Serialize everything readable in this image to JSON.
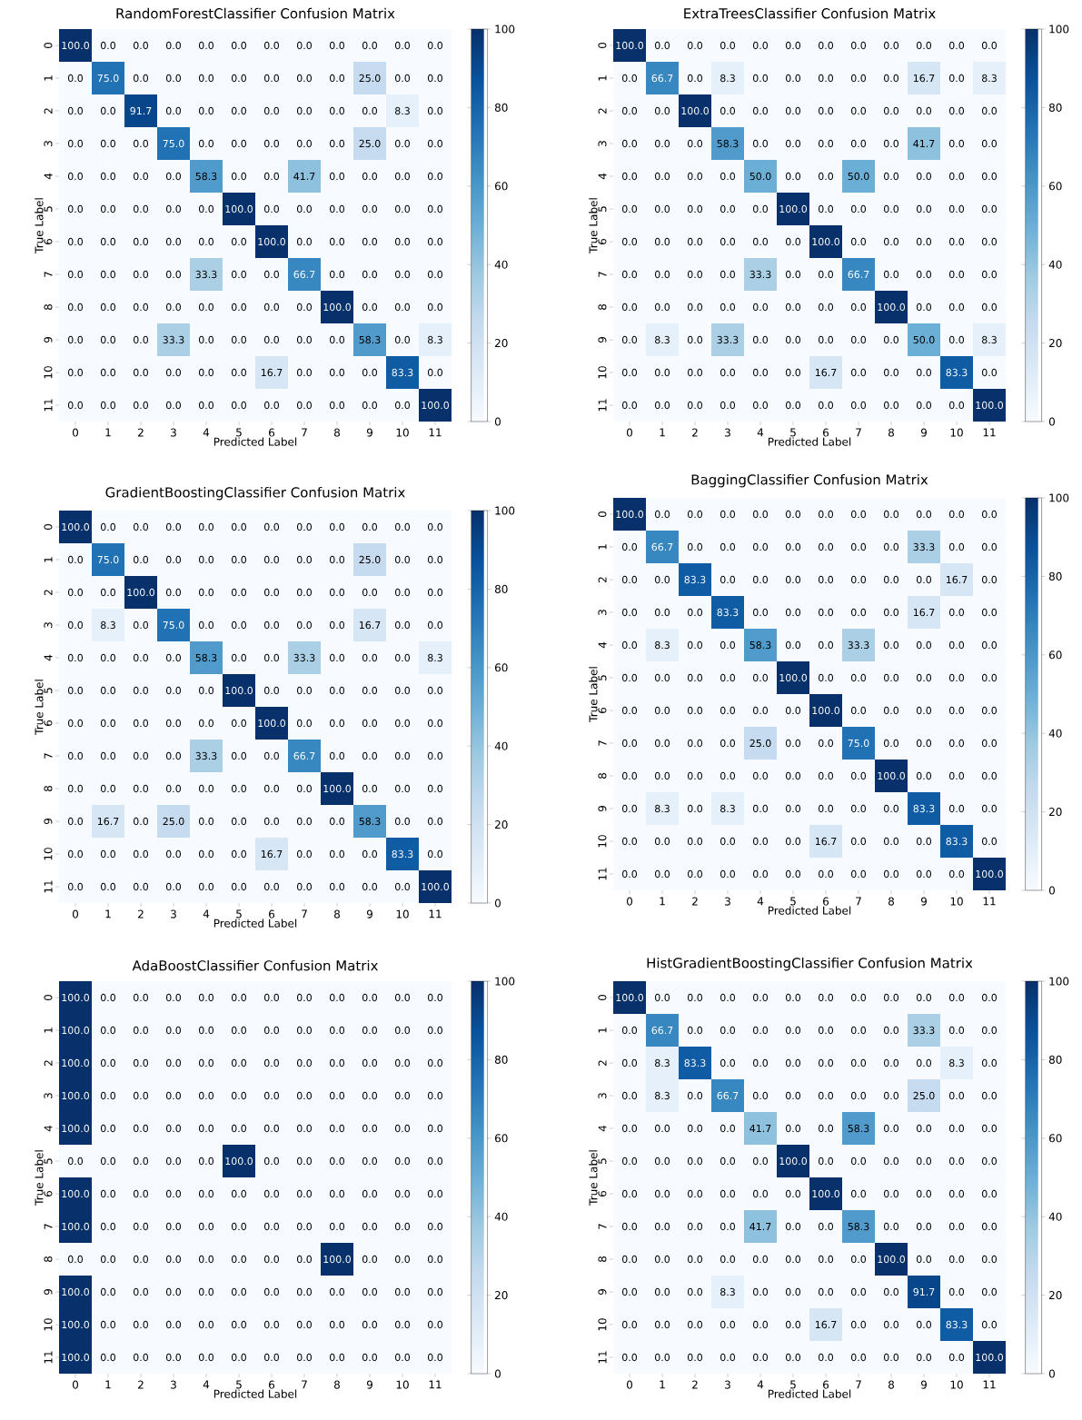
{
  "chart_data": [
    {
      "type": "heatmap",
      "title": "RandomForestClassifier Confusion Matrix",
      "data_labels": true,
      "xlabel": "Predicted Label",
      "ylabel": "True Label",
      "categories": [
        "0",
        "1",
        "2",
        "3",
        "4",
        "5",
        "6",
        "7",
        "8",
        "9",
        "10",
        "11"
      ],
      "y_categories": [
        "0",
        "1",
        "2",
        "3",
        "4",
        "5",
        "6",
        "7",
        "8",
        "9",
        "10",
        "11"
      ],
      "cells": [
        [
          100,
          0,
          0,
          0,
          0,
          0,
          0,
          0,
          0,
          0,
          0,
          0
        ],
        [
          0,
          75,
          0,
          0,
          0,
          0,
          0,
          0,
          0,
          25,
          0,
          0
        ],
        [
          0,
          0,
          91.7,
          0,
          0,
          0,
          0,
          0,
          0,
          0,
          8.3,
          0
        ],
        [
          0,
          0,
          0,
          75,
          0,
          0,
          0,
          0,
          0,
          25,
          0,
          0
        ],
        [
          0,
          0,
          0,
          0,
          58.3,
          0,
          0,
          41.7,
          0,
          0,
          0,
          0
        ],
        [
          0,
          0,
          0,
          0,
          0,
          100,
          0,
          0,
          0,
          0,
          0,
          0
        ],
        [
          0,
          0,
          0,
          0,
          0,
          0,
          100,
          0,
          0,
          0,
          0,
          0
        ],
        [
          0,
          0,
          0,
          0,
          33.3,
          0,
          0,
          66.7,
          0,
          0,
          0,
          0
        ],
        [
          0,
          0,
          0,
          0,
          0,
          0,
          0,
          0,
          100,
          0,
          0,
          0
        ],
        [
          0,
          0,
          0,
          33.3,
          0,
          0,
          0,
          0,
          0,
          58.3,
          0,
          8.3
        ],
        [
          0,
          0,
          0,
          0,
          0,
          0,
          16.7,
          0,
          0,
          0,
          83.3,
          0
        ],
        [
          0,
          0,
          0,
          0,
          0,
          0,
          0,
          0,
          0,
          0,
          0,
          100
        ]
      ],
      "cell_labels": [
        [
          "100.0",
          "0.0",
          "0.0",
          "0.0",
          "0.0",
          "0.0",
          "0.0",
          "0.0",
          "0.0",
          "0.0",
          "0.0",
          "0.0"
        ],
        [
          "0.0",
          "75.0",
          "0.0",
          "0.0",
          "0.0",
          "0.0",
          "0.0",
          "0.0",
          "0.0",
          "25.0",
          "0.0",
          "0.0"
        ],
        [
          "0.0",
          "0.0",
          "91.7",
          "0.0",
          "0.0",
          "0.0",
          "0.0",
          "0.0",
          "0.0",
          "0.0",
          "8.3",
          "0.0"
        ],
        [
          "0.0",
          "0.0",
          "0.0",
          "75.0",
          "0.0",
          "0.0",
          "0.0",
          "0.0",
          "0.0",
          "25.0",
          "0.0",
          "0.0"
        ],
        [
          "0.0",
          "0.0",
          "0.0",
          "0.0",
          "58.3",
          "0.0",
          "0.0",
          "41.7",
          "0.0",
          "0.0",
          "0.0",
          "0.0"
        ],
        [
          "0.0",
          "0.0",
          "0.0",
          "0.0",
          "0.0",
          "100.0",
          "0.0",
          "0.0",
          "0.0",
          "0.0",
          "0.0",
          "0.0"
        ],
        [
          "0.0",
          "0.0",
          "0.0",
          "0.0",
          "0.0",
          "0.0",
          "100.0",
          "0.0",
          "0.0",
          "0.0",
          "0.0",
          "0.0"
        ],
        [
          "0.0",
          "0.0",
          "0.0",
          "0.0",
          "33.3",
          "0.0",
          "0.0",
          "66.7",
          "0.0",
          "0.0",
          "0.0",
          "0.0"
        ],
        [
          "0.0",
          "0.0",
          "0.0",
          "0.0",
          "0.0",
          "0.0",
          "0.0",
          "0.0",
          "100.0",
          "0.0",
          "0.0",
          "0.0"
        ],
        [
          "0.0",
          "0.0",
          "0.0",
          "33.3",
          "0.0",
          "0.0",
          "0.0",
          "0.0",
          "0.0",
          "58.3",
          "0.0",
          "8.3"
        ],
        [
          "0.0",
          "0.0",
          "0.0",
          "0.0",
          "0.0",
          "0.0",
          "16.7",
          "0.0",
          "0.0",
          "0.0",
          "83.3",
          "0.0"
        ],
        [
          "0.0",
          "0.0",
          "0.0",
          "0.0",
          "0.0",
          "0.0",
          "0.0",
          "0.0",
          "0.0",
          "0.0",
          "0.0",
          "100.0"
        ]
      ],
      "clim": [
        0,
        100
      ],
      "cticks": [
        0,
        20,
        40,
        60,
        80,
        100
      ]
    },
    {
      "type": "heatmap",
      "title": "ExtraTreesClassifier Confusion Matrix",
      "data_labels": true,
      "xlabel": "Predicted Label",
      "ylabel": "True Label",
      "categories": [
        "0",
        "1",
        "2",
        "3",
        "4",
        "5",
        "6",
        "7",
        "8",
        "9",
        "10",
        "11"
      ],
      "y_categories": [
        "0",
        "1",
        "2",
        "3",
        "4",
        "5",
        "6",
        "7",
        "8",
        "9",
        "10",
        "11"
      ],
      "cells": [
        [
          100,
          0,
          0,
          0,
          0,
          0,
          0,
          0,
          0,
          0,
          0,
          0
        ],
        [
          0,
          66.7,
          0,
          8.3,
          0,
          0,
          0,
          0,
          0,
          16.7,
          0,
          8.3
        ],
        [
          0,
          0,
          100,
          0,
          0,
          0,
          0,
          0,
          0,
          0,
          0,
          0
        ],
        [
          0,
          0,
          0,
          58.3,
          0,
          0,
          0,
          0,
          0,
          41.7,
          0,
          0
        ],
        [
          0,
          0,
          0,
          0,
          50,
          0,
          0,
          50,
          0,
          0,
          0,
          0
        ],
        [
          0,
          0,
          0,
          0,
          0,
          100,
          0,
          0,
          0,
          0,
          0,
          0
        ],
        [
          0,
          0,
          0,
          0,
          0,
          0,
          100,
          0,
          0,
          0,
          0,
          0
        ],
        [
          0,
          0,
          0,
          0,
          33.3,
          0,
          0,
          66.7,
          0,
          0,
          0,
          0
        ],
        [
          0,
          0,
          0,
          0,
          0,
          0,
          0,
          0,
          100,
          0,
          0,
          0
        ],
        [
          0,
          8.3,
          0,
          33.3,
          0,
          0,
          0,
          0,
          0,
          50,
          0,
          8.3
        ],
        [
          0,
          0,
          0,
          0,
          0,
          0,
          16.7,
          0,
          0,
          0,
          83.3,
          0
        ],
        [
          0,
          0,
          0,
          0,
          0,
          0,
          0,
          0,
          0,
          0,
          0,
          100
        ]
      ],
      "cell_labels": [
        [
          "100.0",
          "0.0",
          "0.0",
          "0.0",
          "0.0",
          "0.0",
          "0.0",
          "0.0",
          "0.0",
          "0.0",
          "0.0",
          "0.0"
        ],
        [
          "0.0",
          "66.7",
          "0.0",
          "8.3",
          "0.0",
          "0.0",
          "0.0",
          "0.0",
          "0.0",
          "16.7",
          "0.0",
          "8.3"
        ],
        [
          "0.0",
          "0.0",
          "100.0",
          "0.0",
          "0.0",
          "0.0",
          "0.0",
          "0.0",
          "0.0",
          "0.0",
          "0.0",
          "0.0"
        ],
        [
          "0.0",
          "0.0",
          "0.0",
          "58.3",
          "0.0",
          "0.0",
          "0.0",
          "0.0",
          "0.0",
          "41.7",
          "0.0",
          "0.0"
        ],
        [
          "0.0",
          "0.0",
          "0.0",
          "0.0",
          "50.0",
          "0.0",
          "0.0",
          "50.0",
          "0.0",
          "0.0",
          "0.0",
          "0.0"
        ],
        [
          "0.0",
          "0.0",
          "0.0",
          "0.0",
          "0.0",
          "100.0",
          "0.0",
          "0.0",
          "0.0",
          "0.0",
          "0.0",
          "0.0"
        ],
        [
          "0.0",
          "0.0",
          "0.0",
          "0.0",
          "0.0",
          "0.0",
          "100.0",
          "0.0",
          "0.0",
          "0.0",
          "0.0",
          "0.0"
        ],
        [
          "0.0",
          "0.0",
          "0.0",
          "0.0",
          "33.3",
          "0.0",
          "0.0",
          "66.7",
          "0.0",
          "0.0",
          "0.0",
          "0.0"
        ],
        [
          "0.0",
          "0.0",
          "0.0",
          "0.0",
          "0.0",
          "0.0",
          "0.0",
          "0.0",
          "100.0",
          "0.0",
          "0.0",
          "0.0"
        ],
        [
          "0.0",
          "8.3",
          "0.0",
          "33.3",
          "0.0",
          "0.0",
          "0.0",
          "0.0",
          "0.0",
          "50.0",
          "0.0",
          "8.3"
        ],
        [
          "0.0",
          "0.0",
          "0.0",
          "0.0",
          "0.0",
          "0.0",
          "16.7",
          "0.0",
          "0.0",
          "0.0",
          "83.3",
          "0.0"
        ],
        [
          "0.0",
          "0.0",
          "0.0",
          "0.0",
          "0.0",
          "0.0",
          "0.0",
          "0.0",
          "0.0",
          "0.0",
          "0.0",
          "100.0"
        ]
      ],
      "clim": [
        0,
        100
      ],
      "cticks": [
        0,
        20,
        40,
        60,
        80,
        100
      ]
    },
    {
      "type": "heatmap",
      "title": "GradientBoostingClassifier Confusion Matrix",
      "data_labels": true,
      "xlabel": "Predicted Label",
      "ylabel": "True Label",
      "categories": [
        "0",
        "1",
        "2",
        "3",
        "4",
        "5",
        "6",
        "7",
        "8",
        "9",
        "10",
        "11"
      ],
      "y_categories": [
        "0",
        "1",
        "2",
        "3",
        "4",
        "5",
        "6",
        "7",
        "8",
        "9",
        "10",
        "11"
      ],
      "cells": [
        [
          100,
          0,
          0,
          0,
          0,
          0,
          0,
          0,
          0,
          0,
          0,
          0
        ],
        [
          0,
          75,
          0,
          0,
          0,
          0,
          0,
          0,
          0,
          25,
          0,
          0
        ],
        [
          0,
          0,
          100,
          0,
          0,
          0,
          0,
          0,
          0,
          0,
          0,
          0
        ],
        [
          0,
          8.3,
          0,
          75,
          0,
          0,
          0,
          0,
          0,
          16.7,
          0,
          0
        ],
        [
          0,
          0,
          0,
          0,
          58.3,
          0,
          0,
          33.3,
          0,
          0,
          0,
          8.3
        ],
        [
          0,
          0,
          0,
          0,
          0,
          100,
          0,
          0,
          0,
          0,
          0,
          0
        ],
        [
          0,
          0,
          0,
          0,
          0,
          0,
          100,
          0,
          0,
          0,
          0,
          0
        ],
        [
          0,
          0,
          0,
          0,
          33.3,
          0,
          0,
          66.7,
          0,
          0,
          0,
          0
        ],
        [
          0,
          0,
          0,
          0,
          0,
          0,
          0,
          0,
          100,
          0,
          0,
          0
        ],
        [
          0,
          16.7,
          0,
          25,
          0,
          0,
          0,
          0,
          0,
          58.3,
          0,
          0
        ],
        [
          0,
          0,
          0,
          0,
          0,
          0,
          16.7,
          0,
          0,
          0,
          83.3,
          0
        ],
        [
          0,
          0,
          0,
          0,
          0,
          0,
          0,
          0,
          0,
          0,
          0,
          100
        ]
      ],
      "cell_labels": [
        [
          "100.0",
          "0.0",
          "0.0",
          "0.0",
          "0.0",
          "0.0",
          "0.0",
          "0.0",
          "0.0",
          "0.0",
          "0.0",
          "0.0"
        ],
        [
          "0.0",
          "75.0",
          "0.0",
          "0.0",
          "0.0",
          "0.0",
          "0.0",
          "0.0",
          "0.0",
          "25.0",
          "0.0",
          "0.0"
        ],
        [
          "0.0",
          "0.0",
          "100.0",
          "0.0",
          "0.0",
          "0.0",
          "0.0",
          "0.0",
          "0.0",
          "0.0",
          "0.0",
          "0.0"
        ],
        [
          "0.0",
          "8.3",
          "0.0",
          "75.0",
          "0.0",
          "0.0",
          "0.0",
          "0.0",
          "0.0",
          "16.7",
          "0.0",
          "0.0"
        ],
        [
          "0.0",
          "0.0",
          "0.0",
          "0.0",
          "58.3",
          "0.0",
          "0.0",
          "33.3",
          "0.0",
          "0.0",
          "0.0",
          "8.3"
        ],
        [
          "0.0",
          "0.0",
          "0.0",
          "0.0",
          "0.0",
          "100.0",
          "0.0",
          "0.0",
          "0.0",
          "0.0",
          "0.0",
          "0.0"
        ],
        [
          "0.0",
          "0.0",
          "0.0",
          "0.0",
          "0.0",
          "0.0",
          "100.0",
          "0.0",
          "0.0",
          "0.0",
          "0.0",
          "0.0"
        ],
        [
          "0.0",
          "0.0",
          "0.0",
          "0.0",
          "33.3",
          "0.0",
          "0.0",
          "66.7",
          "0.0",
          "0.0",
          "0.0",
          "0.0"
        ],
        [
          "0.0",
          "0.0",
          "0.0",
          "0.0",
          "0.0",
          "0.0",
          "0.0",
          "0.0",
          "100.0",
          "0.0",
          "0.0",
          "0.0"
        ],
        [
          "0.0",
          "16.7",
          "0.0",
          "25.0",
          "0.0",
          "0.0",
          "0.0",
          "0.0",
          "0.0",
          "58.3",
          "0.0",
          "0.0"
        ],
        [
          "0.0",
          "0.0",
          "0.0",
          "0.0",
          "0.0",
          "0.0",
          "16.7",
          "0.0",
          "0.0",
          "0.0",
          "83.3",
          "0.0"
        ],
        [
          "0.0",
          "0.0",
          "0.0",
          "0.0",
          "0.0",
          "0.0",
          "0.0",
          "0.0",
          "0.0",
          "0.0",
          "0.0",
          "100.0"
        ]
      ],
      "clim": [
        0,
        100
      ],
      "cticks": [
        0,
        20,
        40,
        60,
        80,
        100
      ]
    },
    {
      "type": "heatmap",
      "title": "BaggingClassifier Confusion Matrix",
      "data_labels": true,
      "xlabel": "Predicted Label",
      "ylabel": "True Label",
      "categories": [
        "0",
        "1",
        "2",
        "3",
        "4",
        "5",
        "6",
        "7",
        "8",
        "9",
        "10",
        "11"
      ],
      "y_categories": [
        "0",
        "1",
        "2",
        "3",
        "4",
        "5",
        "6",
        "7",
        "8",
        "9",
        "10",
        "11"
      ],
      "cells": [
        [
          100,
          0,
          0,
          0,
          0,
          0,
          0,
          0,
          0,
          0,
          0,
          0
        ],
        [
          0,
          66.7,
          0,
          0,
          0,
          0,
          0,
          0,
          0,
          33.3,
          0,
          0
        ],
        [
          0,
          0,
          83.3,
          0,
          0,
          0,
          0,
          0,
          0,
          0,
          16.7,
          0
        ],
        [
          0,
          0,
          0,
          83.3,
          0,
          0,
          0,
          0,
          0,
          16.7,
          0,
          0
        ],
        [
          0,
          8.3,
          0,
          0,
          58.3,
          0,
          0,
          33.3,
          0,
          0,
          0,
          0
        ],
        [
          0,
          0,
          0,
          0,
          0,
          100,
          0,
          0,
          0,
          0,
          0,
          0
        ],
        [
          0,
          0,
          0,
          0,
          0,
          0,
          100,
          0,
          0,
          0,
          0,
          0
        ],
        [
          0,
          0,
          0,
          0,
          25,
          0,
          0,
          75,
          0,
          0,
          0,
          0
        ],
        [
          0,
          0,
          0,
          0,
          0,
          0,
          0,
          0,
          100,
          0,
          0,
          0
        ],
        [
          0,
          8.3,
          0,
          8.3,
          0,
          0,
          0,
          0,
          0,
          83.3,
          0,
          0
        ],
        [
          0,
          0,
          0,
          0,
          0,
          0,
          16.7,
          0,
          0,
          0,
          83.3,
          0
        ],
        [
          0,
          0,
          0,
          0,
          0,
          0,
          0,
          0,
          0,
          0,
          0,
          100
        ]
      ],
      "cell_labels": [
        [
          "100.0",
          "0.0",
          "0.0",
          "0.0",
          "0.0",
          "0.0",
          "0.0",
          "0.0",
          "0.0",
          "0.0",
          "0.0",
          "0.0"
        ],
        [
          "0.0",
          "66.7",
          "0.0",
          "0.0",
          "0.0",
          "0.0",
          "0.0",
          "0.0",
          "0.0",
          "33.3",
          "0.0",
          "0.0"
        ],
        [
          "0.0",
          "0.0",
          "83.3",
          "0.0",
          "0.0",
          "0.0",
          "0.0",
          "0.0",
          "0.0",
          "0.0",
          "16.7",
          "0.0"
        ],
        [
          "0.0",
          "0.0",
          "0.0",
          "83.3",
          "0.0",
          "0.0",
          "0.0",
          "0.0",
          "0.0",
          "16.7",
          "0.0",
          "0.0"
        ],
        [
          "0.0",
          "8.3",
          "0.0",
          "0.0",
          "58.3",
          "0.0",
          "0.0",
          "33.3",
          "0.0",
          "0.0",
          "0.0",
          "0.0"
        ],
        [
          "0.0",
          "0.0",
          "0.0",
          "0.0",
          "0.0",
          "100.0",
          "0.0",
          "0.0",
          "0.0",
          "0.0",
          "0.0",
          "0.0"
        ],
        [
          "0.0",
          "0.0",
          "0.0",
          "0.0",
          "0.0",
          "0.0",
          "100.0",
          "0.0",
          "0.0",
          "0.0",
          "0.0",
          "0.0"
        ],
        [
          "0.0",
          "0.0",
          "0.0",
          "0.0",
          "25.0",
          "0.0",
          "0.0",
          "75.0",
          "0.0",
          "0.0",
          "0.0",
          "0.0"
        ],
        [
          "0.0",
          "0.0",
          "0.0",
          "0.0",
          "0.0",
          "0.0",
          "0.0",
          "0.0",
          "100.0",
          "0.0",
          "0.0",
          "0.0"
        ],
        [
          "0.0",
          "8.3",
          "0.0",
          "8.3",
          "0.0",
          "0.0",
          "0.0",
          "0.0",
          "0.0",
          "83.3",
          "0.0",
          "0.0"
        ],
        [
          "0.0",
          "0.0",
          "0.0",
          "0.0",
          "0.0",
          "0.0",
          "16.7",
          "0.0",
          "0.0",
          "0.0",
          "83.3",
          "0.0"
        ],
        [
          "0.0",
          "0.0",
          "0.0",
          "0.0",
          "0.0",
          "0.0",
          "0.0",
          "0.0",
          "0.0",
          "0.0",
          "0.0",
          "100.0"
        ]
      ],
      "clim": [
        0,
        100
      ],
      "cticks": [
        0,
        20,
        40,
        60,
        80,
        100
      ]
    },
    {
      "type": "heatmap",
      "title": "AdaBoostClassifier Confusion Matrix",
      "data_labels": true,
      "xlabel": "Predicted Label",
      "ylabel": "True Label",
      "categories": [
        "0",
        "1",
        "2",
        "3",
        "4",
        "5",
        "6",
        "7",
        "8",
        "9",
        "10",
        "11"
      ],
      "y_categories": [
        "0",
        "1",
        "2",
        "3",
        "4",
        "5",
        "6",
        "7",
        "8",
        "9",
        "10",
        "11"
      ],
      "cells": [
        [
          100,
          0,
          0,
          0,
          0,
          0,
          0,
          0,
          0,
          0,
          0,
          0
        ],
        [
          100,
          0,
          0,
          0,
          0,
          0,
          0,
          0,
          0,
          0,
          0,
          0
        ],
        [
          100,
          0,
          0,
          0,
          0,
          0,
          0,
          0,
          0,
          0,
          0,
          0
        ],
        [
          100,
          0,
          0,
          0,
          0,
          0,
          0,
          0,
          0,
          0,
          0,
          0
        ],
        [
          100,
          0,
          0,
          0,
          0,
          0,
          0,
          0,
          0,
          0,
          0,
          0
        ],
        [
          0,
          0,
          0,
          0,
          0,
          100,
          0,
          0,
          0,
          0,
          0,
          0
        ],
        [
          100,
          0,
          0,
          0,
          0,
          0,
          0,
          0,
          0,
          0,
          0,
          0
        ],
        [
          100,
          0,
          0,
          0,
          0,
          0,
          0,
          0,
          0,
          0,
          0,
          0
        ],
        [
          0,
          0,
          0,
          0,
          0,
          0,
          0,
          0,
          100,
          0,
          0,
          0
        ],
        [
          100,
          0,
          0,
          0,
          0,
          0,
          0,
          0,
          0,
          0,
          0,
          0
        ],
        [
          100,
          0,
          0,
          0,
          0,
          0,
          0,
          0,
          0,
          0,
          0,
          0
        ],
        [
          100,
          0,
          0,
          0,
          0,
          0,
          0,
          0,
          0,
          0,
          0,
          0
        ]
      ],
      "cell_labels": [
        [
          "100.0",
          "0.0",
          "0.0",
          "0.0",
          "0.0",
          "0.0",
          "0.0",
          "0.0",
          "0.0",
          "0.0",
          "0.0",
          "0.0"
        ],
        [
          "100.0",
          "0.0",
          "0.0",
          "0.0",
          "0.0",
          "0.0",
          "0.0",
          "0.0",
          "0.0",
          "0.0",
          "0.0",
          "0.0"
        ],
        [
          "100.0",
          "0.0",
          "0.0",
          "0.0",
          "0.0",
          "0.0",
          "0.0",
          "0.0",
          "0.0",
          "0.0",
          "0.0",
          "0.0"
        ],
        [
          "100.0",
          "0.0",
          "0.0",
          "0.0",
          "0.0",
          "0.0",
          "0.0",
          "0.0",
          "0.0",
          "0.0",
          "0.0",
          "0.0"
        ],
        [
          "100.0",
          "0.0",
          "0.0",
          "0.0",
          "0.0",
          "0.0",
          "0.0",
          "0.0",
          "0.0",
          "0.0",
          "0.0",
          "0.0"
        ],
        [
          "0.0",
          "0.0",
          "0.0",
          "0.0",
          "0.0",
          "100.0",
          "0.0",
          "0.0",
          "0.0",
          "0.0",
          "0.0",
          "0.0"
        ],
        [
          "100.0",
          "0.0",
          "0.0",
          "0.0",
          "0.0",
          "0.0",
          "0.0",
          "0.0",
          "0.0",
          "0.0",
          "0.0",
          "0.0"
        ],
        [
          "100.0",
          "0.0",
          "0.0",
          "0.0",
          "0.0",
          "0.0",
          "0.0",
          "0.0",
          "0.0",
          "0.0",
          "0.0",
          "0.0"
        ],
        [
          "0.0",
          "0.0",
          "0.0",
          "0.0",
          "0.0",
          "0.0",
          "0.0",
          "0.0",
          "100.0",
          "0.0",
          "0.0",
          "0.0"
        ],
        [
          "100.0",
          "0.0",
          "0.0",
          "0.0",
          "0.0",
          "0.0",
          "0.0",
          "0.0",
          "0.0",
          "0.0",
          "0.0",
          "0.0"
        ],
        [
          "100.0",
          "0.0",
          "0.0",
          "0.0",
          "0.0",
          "0.0",
          "0.0",
          "0.0",
          "0.0",
          "0.0",
          "0.0",
          "0.0"
        ],
        [
          "100.0",
          "0.0",
          "0.0",
          "0.0",
          "0.0",
          "0.0",
          "0.0",
          "0.0",
          "0.0",
          "0.0",
          "0.0",
          "0.0"
        ]
      ],
      "clim": [
        0,
        100
      ],
      "cticks": [
        0,
        20,
        40,
        60,
        80,
        100
      ]
    },
    {
      "type": "heatmap",
      "title": "HistGradientBoostingClassifier Confusion Matrix",
      "data_labels": true,
      "xlabel": "Predicted Label",
      "ylabel": "True Label",
      "categories": [
        "0",
        "1",
        "2",
        "3",
        "4",
        "5",
        "6",
        "7",
        "8",
        "9",
        "10",
        "11"
      ],
      "y_categories": [
        "0",
        "1",
        "2",
        "3",
        "4",
        "5",
        "6",
        "7",
        "8",
        "9",
        "10",
        "11"
      ],
      "cells": [
        [
          100,
          0,
          0,
          0,
          0,
          0,
          0,
          0,
          0,
          0,
          0,
          0
        ],
        [
          0,
          66.7,
          0,
          0,
          0,
          0,
          0,
          0,
          0,
          33.3,
          0,
          0
        ],
        [
          0,
          8.3,
          83.3,
          0,
          0,
          0,
          0,
          0,
          0,
          0,
          8.3,
          0
        ],
        [
          0,
          8.3,
          0,
          66.7,
          0,
          0,
          0,
          0,
          0,
          25,
          0,
          0
        ],
        [
          0,
          0,
          0,
          0,
          41.7,
          0,
          0,
          58.3,
          0,
          0,
          0,
          0
        ],
        [
          0,
          0,
          0,
          0,
          0,
          100,
          0,
          0,
          0,
          0,
          0,
          0
        ],
        [
          0,
          0,
          0,
          0,
          0,
          0,
          100,
          0,
          0,
          0,
          0,
          0
        ],
        [
          0,
          0,
          0,
          0,
          41.7,
          0,
          0,
          58.3,
          0,
          0,
          0,
          0
        ],
        [
          0,
          0,
          0,
          0,
          0,
          0,
          0,
          0,
          100,
          0,
          0,
          0
        ],
        [
          0,
          0,
          0,
          8.3,
          0,
          0,
          0,
          0,
          0,
          91.7,
          0,
          0
        ],
        [
          0,
          0,
          0,
          0,
          0,
          0,
          16.7,
          0,
          0,
          0,
          83.3,
          0
        ],
        [
          0,
          0,
          0,
          0,
          0,
          0,
          0,
          0,
          0,
          0,
          0,
          100
        ]
      ],
      "cell_labels": [
        [
          "100.0",
          "0.0",
          "0.0",
          "0.0",
          "0.0",
          "0.0",
          "0.0",
          "0.0",
          "0.0",
          "0.0",
          "0.0",
          "0.0"
        ],
        [
          "0.0",
          "66.7",
          "0.0",
          "0.0",
          "0.0",
          "0.0",
          "0.0",
          "0.0",
          "0.0",
          "33.3",
          "0.0",
          "0.0"
        ],
        [
          "0.0",
          "8.3",
          "83.3",
          "0.0",
          "0.0",
          "0.0",
          "0.0",
          "0.0",
          "0.0",
          "0.0",
          "8.3",
          "0.0"
        ],
        [
          "0.0",
          "8.3",
          "0.0",
          "66.7",
          "0.0",
          "0.0",
          "0.0",
          "0.0",
          "0.0",
          "25.0",
          "0.0",
          "0.0"
        ],
        [
          "0.0",
          "0.0",
          "0.0",
          "0.0",
          "41.7",
          "0.0",
          "0.0",
          "58.3",
          "0.0",
          "0.0",
          "0.0",
          "0.0"
        ],
        [
          "0.0",
          "0.0",
          "0.0",
          "0.0",
          "0.0",
          "100.0",
          "0.0",
          "0.0",
          "0.0",
          "0.0",
          "0.0",
          "0.0"
        ],
        [
          "0.0",
          "0.0",
          "0.0",
          "0.0",
          "0.0",
          "0.0",
          "100.0",
          "0.0",
          "0.0",
          "0.0",
          "0.0",
          "0.0"
        ],
        [
          "0.0",
          "0.0",
          "0.0",
          "0.0",
          "41.7",
          "0.0",
          "0.0",
          "58.3",
          "0.0",
          "0.0",
          "0.0",
          "0.0"
        ],
        [
          "0.0",
          "0.0",
          "0.0",
          "0.0",
          "0.0",
          "0.0",
          "0.0",
          "0.0",
          "100.0",
          "0.0",
          "0.0",
          "0.0"
        ],
        [
          "0.0",
          "0.0",
          "0.0",
          "8.3",
          "0.0",
          "0.0",
          "0.0",
          "0.0",
          "0.0",
          "91.7",
          "0.0",
          "0.0"
        ],
        [
          "0.0",
          "0.0",
          "0.0",
          "0.0",
          "0.0",
          "0.0",
          "16.7",
          "0.0",
          "0.0",
          "0.0",
          "83.3",
          "0.0"
        ],
        [
          "0.0",
          "0.0",
          "0.0",
          "0.0",
          "0.0",
          "0.0",
          "0.0",
          "0.0",
          "0.0",
          "0.0",
          "0.0",
          "100.0"
        ]
      ],
      "clim": [
        0,
        100
      ],
      "cticks": [
        0,
        20,
        40,
        60,
        80,
        100
      ]
    }
  ]
}
